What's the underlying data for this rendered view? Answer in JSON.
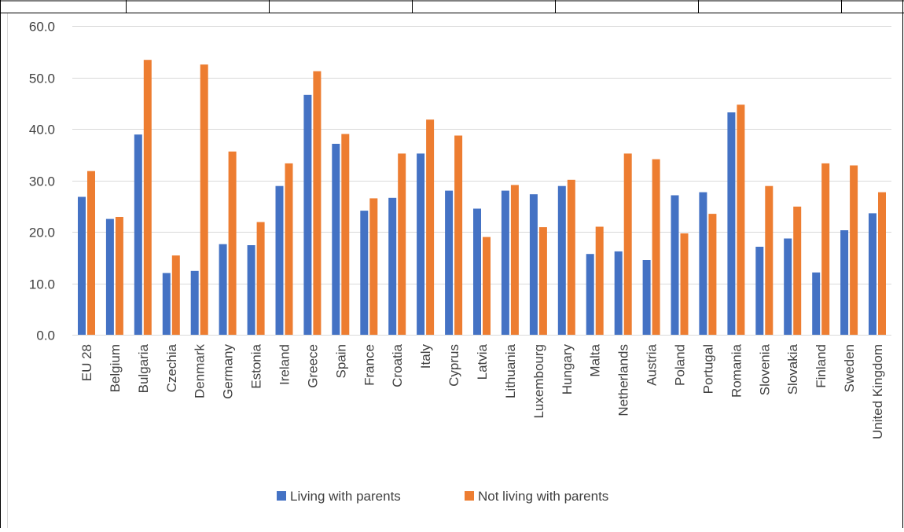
{
  "chart_data": {
    "type": "bar",
    "categories": [
      "EU 28",
      "Belgium",
      "Bulgaria",
      "Czechia",
      "Denmark",
      "Germany",
      "Estonia",
      "Ireland",
      "Greece",
      "Spain",
      "France",
      "Croatia",
      "Italy",
      "Cyprus",
      "Latvia",
      "Lithuania",
      "Luxembourg",
      "Hungary",
      "Malta",
      "Netherlands",
      "Austria",
      "Poland",
      "Portugal",
      "Romania",
      "Slovenia",
      "Slovakia",
      "Finland",
      "Sweden",
      "United Kingdom"
    ],
    "series": [
      {
        "name": "Living with parents",
        "color": "#4472c4",
        "values": [
          26.8,
          22.5,
          38.9,
          12.0,
          12.4,
          17.6,
          17.4,
          28.9,
          46.6,
          37.1,
          24.1,
          26.6,
          35.2,
          28.0,
          24.5,
          28.0,
          27.3,
          28.9,
          15.7,
          16.2,
          14.5,
          27.1,
          27.7,
          43.2,
          17.1,
          18.7,
          12.1,
          20.3,
          23.6
        ]
      },
      {
        "name": "Not living with parents",
        "color": "#ed7d31",
        "values": [
          31.8,
          22.9,
          53.4,
          15.4,
          52.5,
          35.6,
          21.9,
          33.3,
          51.2,
          39.0,
          26.5,
          35.2,
          41.8,
          38.7,
          19.0,
          29.1,
          20.9,
          30.1,
          21.0,
          35.2,
          34.1,
          19.7,
          23.5,
          44.7,
          28.9,
          24.9,
          33.3,
          32.9,
          27.7
        ]
      }
    ],
    "ylim": [
      0,
      60
    ],
    "yticks": [
      "0.0",
      "10.0",
      "20.0",
      "30.0",
      "40.0",
      "50.0",
      "60.0"
    ],
    "grid": true,
    "legend_position": "bottom",
    "gridline_color": "#d9d9d9"
  }
}
